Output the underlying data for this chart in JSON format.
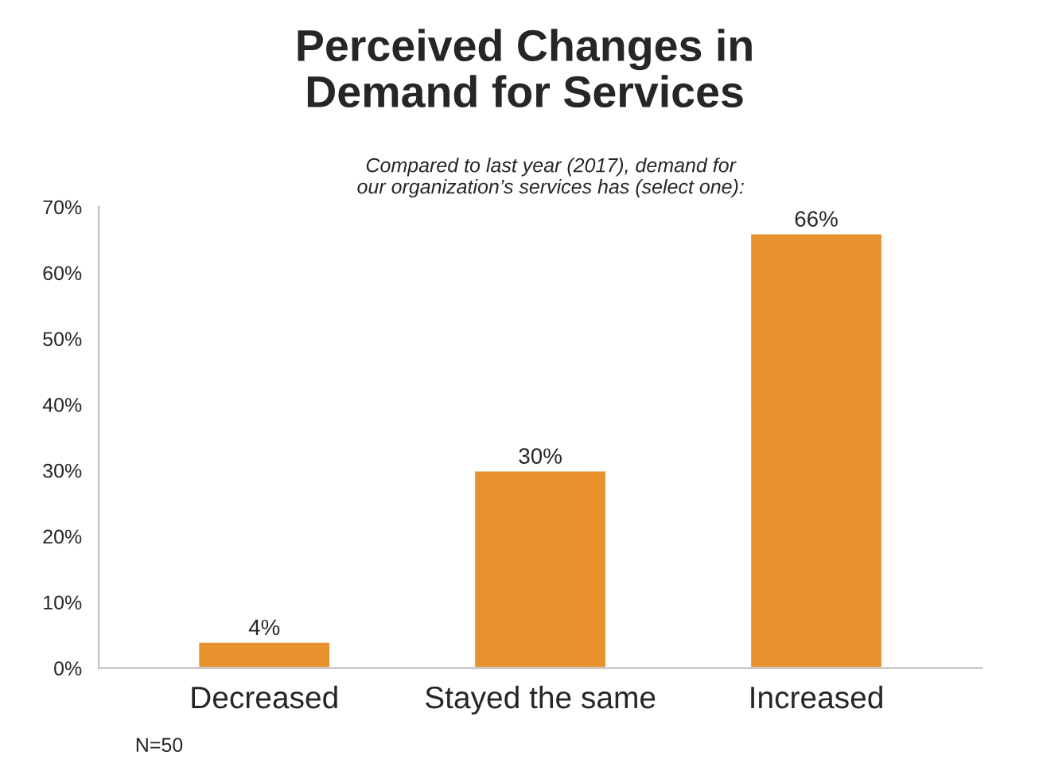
{
  "chart_data": {
    "type": "bar",
    "title": "Perceived Changes in\nDemand for Services",
    "subtitle": "Compared to last year (2017), demand for\nour organization’s services has (select one):",
    "categories": [
      "Decreased",
      "Stayed the same",
      "Increased"
    ],
    "values": [
      4,
      30,
      66
    ],
    "value_labels": [
      "4%",
      "30%",
      "66%"
    ],
    "color": "#e8912f",
    "ylim": [
      0,
      70
    ],
    "yticks": [
      {
        "value": 0,
        "label": "0%"
      },
      {
        "value": 10,
        "label": "10%"
      },
      {
        "value": 20,
        "label": "20%"
      },
      {
        "value": 30,
        "label": "30%"
      },
      {
        "value": 40,
        "label": "40%"
      },
      {
        "value": 50,
        "label": "50%"
      },
      {
        "value": 60,
        "label": "60%"
      },
      {
        "value": 70,
        "label": "70%"
      }
    ],
    "grid": false,
    "annotations": [
      "N=50"
    ]
  }
}
